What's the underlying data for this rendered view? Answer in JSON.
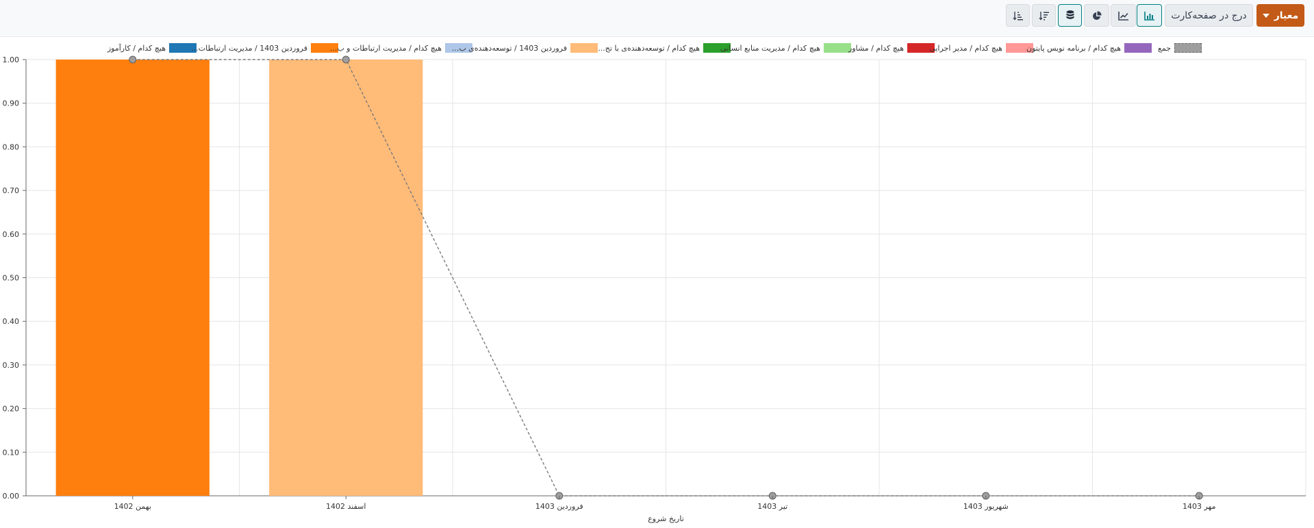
{
  "toolbar": {
    "measure_label": "معیار",
    "insert_label": "درج در صفحه‌کارت",
    "icons": [
      "bar-chart-icon",
      "line-chart-icon",
      "pie-chart-icon",
      "database-stack-icon",
      "sort-descending-icon",
      "sort-ascending-icon"
    ]
  },
  "legend": [
    {
      "label": "هیچ کدام / کارآموز",
      "color": "#1f77b4"
    },
    {
      "label": "فروردین 1403 / مدیریت ارتباطات...",
      "color": "#ff7f0e"
    },
    {
      "label": "هیچ کدام / مدیریت ارتباطات و ب...",
      "color": "#aec7e8"
    },
    {
      "label": "فروردین 1403 / توسعه‌دهنده‌ی ب...",
      "color": "#ffbb78"
    },
    {
      "label": "هیچ کدام / توسعه‌دهنده‌ی با تج...",
      "color": "#2ca02c"
    },
    {
      "label": "هیچ کدام / مدیریت منابع انسانی",
      "color": "#98df8a"
    },
    {
      "label": "هیچ کدام / مشاور",
      "color": "#d62728"
    },
    {
      "label": "هیچ کدام / مدیر اجرایی",
      "color": "#ff9896"
    },
    {
      "label": "هیچ کدام / برنامه نویس پایتون",
      "color": "#9467bd"
    },
    {
      "label": "جمع",
      "color": "#9e9e9e"
    }
  ],
  "chart_data": {
    "type": "bar",
    "categories": [
      "بهمن 1402",
      "اسفند 1402",
      "فروردین 1403",
      "تیر 1403",
      "شهریور 1403",
      "مهر 1403"
    ],
    "series": [
      {
        "name": "فروردین 1403 / مدیریت ارتباطات...",
        "color": "#ff7f0e",
        "values": [
          1,
          0,
          0,
          0,
          0,
          0
        ]
      },
      {
        "name": "فروردین 1403 / توسعه‌دهنده‌ی ب...",
        "color": "#ffbb78",
        "values": [
          0,
          1,
          0,
          0,
          0,
          0
        ]
      },
      {
        "name": "جمع",
        "type": "line",
        "style": "dashed",
        "color": "#9e9e9e",
        "values": [
          1,
          1,
          0,
          0,
          0,
          0
        ]
      }
    ],
    "xlabel": "تاریخ شروع",
    "ylabel": "",
    "ylim": [
      0,
      1
    ],
    "yticks": [
      "0.00",
      "0.10",
      "0.20",
      "0.30",
      "0.40",
      "0.50",
      "0.60",
      "0.70",
      "0.80",
      "0.90",
      "1.00"
    ],
    "grid": true,
    "legend_position": "top"
  }
}
